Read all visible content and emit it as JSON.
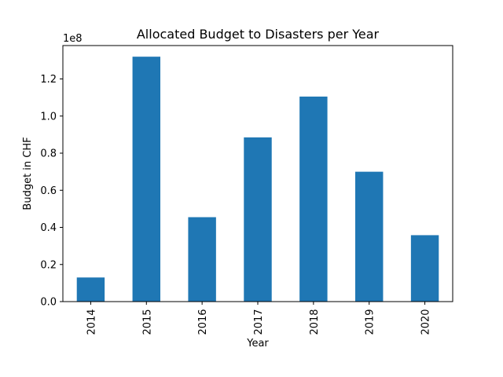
{
  "chart_data": {
    "type": "bar",
    "title": "Allocated Budget to Disasters per Year",
    "xlabel": "Year",
    "ylabel": "Budget in CHF",
    "offset_label": "1e8",
    "categories": [
      "2014",
      "2015",
      "2016",
      "2017",
      "2018",
      "2019",
      "2020"
    ],
    "values": [
      13000000,
      132000000,
      45500000,
      88500000,
      110500000,
      70000000,
      35800000
    ],
    "ylim": [
      0,
      138000000
    ],
    "yticks": [
      {
        "value": 0,
        "label": "0.0"
      },
      {
        "value": 20000000,
        "label": "0.2"
      },
      {
        "value": 40000000,
        "label": "0.4"
      },
      {
        "value": 60000000,
        "label": "0.6"
      },
      {
        "value": 80000000,
        "label": "0.8"
      },
      {
        "value": 100000000,
        "label": "1.0"
      },
      {
        "value": 120000000,
        "label": "1.2"
      }
    ],
    "grid": false,
    "bar_color": "#1f77b4"
  }
}
